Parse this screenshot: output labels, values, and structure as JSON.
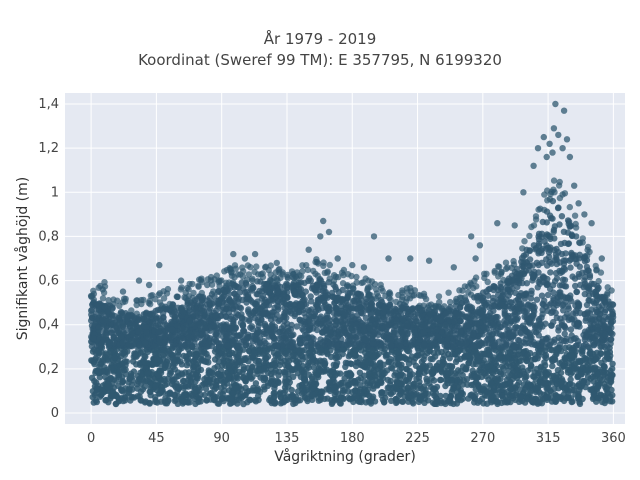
{
  "chart_data": {
    "type": "scatter",
    "title_line1": "År 1979 - 2019",
    "title_line2": "Koordinat (Sweref 99 TM): E 357795, N 6199320",
    "xlabel": "Vågriktning (grader)",
    "ylabel": "Signifikant våghöjd (m)",
    "xlim": [
      -18,
      368
    ],
    "ylim": [
      -0.05,
      1.45
    ],
    "grid": true,
    "legend": false,
    "x_ticks": [
      0,
      45,
      90,
      135,
      180,
      225,
      270,
      315,
      360
    ],
    "y_ticks": [
      0,
      0.2,
      0.4,
      0.6,
      0.8,
      1,
      1.2,
      1.4
    ],
    "x_tick_labels": [
      "0",
      "45",
      "90",
      "135",
      "180",
      "225",
      "270",
      "315",
      "360"
    ],
    "y_tick_labels": [
      "0",
      "0,2",
      "0,4",
      "0,6",
      "0,8",
      "1",
      "1,2",
      "1,4"
    ],
    "series": [
      {
        "color": "#2f5870",
        "dense_band": {
          "y_min": 0.04,
          "y_max": 0.3
        },
        "envelope": [
          {
            "x": 0,
            "y": 0.5
          },
          {
            "x": 10,
            "y": 0.52
          },
          {
            "x": 20,
            "y": 0.46
          },
          {
            "x": 30,
            "y": 0.44
          },
          {
            "x": 45,
            "y": 0.47
          },
          {
            "x": 60,
            "y": 0.5
          },
          {
            "x": 75,
            "y": 0.53
          },
          {
            "x": 90,
            "y": 0.56
          },
          {
            "x": 100,
            "y": 0.6
          },
          {
            "x": 115,
            "y": 0.6
          },
          {
            "x": 130,
            "y": 0.58
          },
          {
            "x": 145,
            "y": 0.6
          },
          {
            "x": 155,
            "y": 0.62
          },
          {
            "x": 165,
            "y": 0.6
          },
          {
            "x": 180,
            "y": 0.55
          },
          {
            "x": 195,
            "y": 0.52
          },
          {
            "x": 210,
            "y": 0.5
          },
          {
            "x": 225,
            "y": 0.48
          },
          {
            "x": 240,
            "y": 0.46
          },
          {
            "x": 255,
            "y": 0.5
          },
          {
            "x": 270,
            "y": 0.55
          },
          {
            "x": 285,
            "y": 0.6
          },
          {
            "x": 295,
            "y": 0.68
          },
          {
            "x": 305,
            "y": 0.8
          },
          {
            "x": 315,
            "y": 0.95
          },
          {
            "x": 320,
            "y": 1.0
          },
          {
            "x": 325,
            "y": 0.95
          },
          {
            "x": 335,
            "y": 0.8
          },
          {
            "x": 345,
            "y": 0.65
          },
          {
            "x": 355,
            "y": 0.52
          },
          {
            "x": 360,
            "y": 0.5
          }
        ],
        "outliers": [
          [
            0,
            0.53
          ],
          [
            8,
            0.56
          ],
          [
            22,
            0.55
          ],
          [
            33,
            0.6
          ],
          [
            40,
            0.58
          ],
          [
            47,
            0.67
          ],
          [
            62,
            0.6
          ],
          [
            80,
            0.58
          ],
          [
            88,
            0.6
          ],
          [
            98,
            0.72
          ],
          [
            106,
            0.7
          ],
          [
            113,
            0.72
          ],
          [
            120,
            0.66
          ],
          [
            128,
            0.68
          ],
          [
            150,
            0.74
          ],
          [
            158,
            0.8
          ],
          [
            160,
            0.87
          ],
          [
            164,
            0.82
          ],
          [
            170,
            0.7
          ],
          [
            180,
            0.67
          ],
          [
            188,
            0.66
          ],
          [
            195,
            0.8
          ],
          [
            205,
            0.7
          ],
          [
            220,
            0.7
          ],
          [
            233,
            0.69
          ],
          [
            250,
            0.66
          ],
          [
            262,
            0.8
          ],
          [
            265,
            0.7
          ],
          [
            268,
            0.76
          ],
          [
            280,
            0.86
          ],
          [
            292,
            0.85
          ],
          [
            298,
            1.0
          ],
          [
            305,
            1.12
          ],
          [
            308,
            1.2
          ],
          [
            312,
            1.25
          ],
          [
            314,
            1.16
          ],
          [
            316,
            1.22
          ],
          [
            318,
            1.18
          ],
          [
            319,
            1.29
          ],
          [
            320,
            1.4
          ],
          [
            322,
            1.26
          ],
          [
            325,
            1.2
          ],
          [
            326,
            1.37
          ],
          [
            328,
            1.24
          ],
          [
            330,
            1.16
          ],
          [
            333,
            1.03
          ],
          [
            336,
            0.95
          ],
          [
            340,
            0.9
          ],
          [
            345,
            0.86
          ],
          [
            352,
            0.7
          ]
        ]
      }
    ]
  }
}
